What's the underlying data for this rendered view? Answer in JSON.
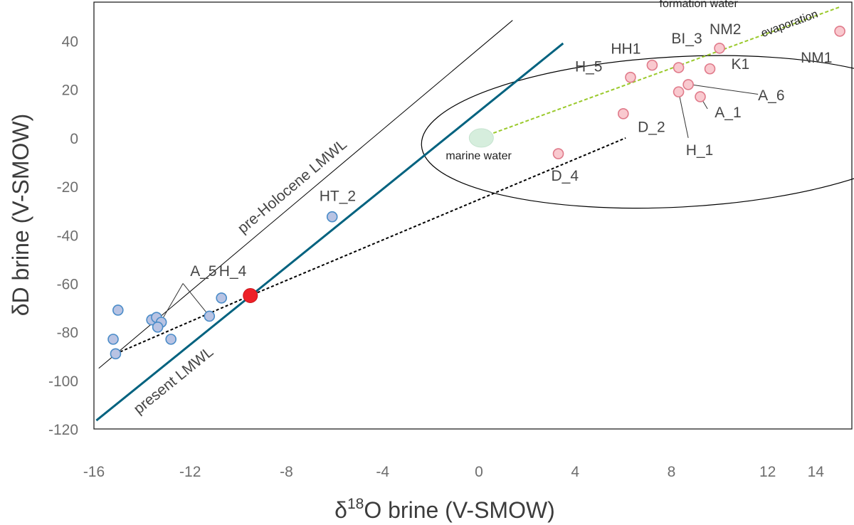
{
  "chart_data": {
    "type": "scatter",
    "title": "",
    "xlabel": {
      "prefix": "δ",
      "sup": "18",
      "rest": "O brine (V-SMOW)"
    },
    "ylabel": "δD brine (V-SMOW)",
    "xlim": [
      -16,
      15.5
    ],
    "ylim": [
      -120,
      56
    ],
    "x_ticks": [
      -16,
      -12,
      -8,
      -4,
      0,
      4,
      8,
      12,
      14
    ],
    "y_ticks": [
      40,
      20,
      0,
      -20,
      -40,
      -60,
      -80,
      -100,
      -120
    ],
    "grid": false,
    "series": [
      {
        "key": "blue",
        "color": "#b8c3e3",
        "stroke": "#4a8cc8",
        "points": [
          {
            "x": -15.0,
            "y": -71,
            "label": ""
          },
          {
            "x": -15.2,
            "y": -83,
            "label": ""
          },
          {
            "x": -15.1,
            "y": -89,
            "label": ""
          },
          {
            "x": -13.6,
            "y": -75,
            "label": ""
          },
          {
            "x": -13.4,
            "y": -74,
            "label": ""
          },
          {
            "x": -13.2,
            "y": -76,
            "label": ""
          },
          {
            "x": -13.35,
            "y": -78,
            "label": ""
          },
          {
            "x": -12.8,
            "y": -83,
            "label": ""
          },
          {
            "x": -11.2,
            "y": -73.5,
            "label": ""
          },
          {
            "x": -10.7,
            "y": -66,
            "label": ""
          },
          {
            "x": -6.1,
            "y": -32.5,
            "label": "HT_2"
          }
        ]
      },
      {
        "key": "pink",
        "color": "#f9c9cf",
        "stroke": "#e07a8a",
        "points": [
          {
            "x": 3.3,
            "y": -6.5,
            "label": "D_4"
          },
          {
            "x": 6.0,
            "y": 10,
            "label": ""
          },
          {
            "x": 6.3,
            "y": 25,
            "label": "H_5"
          },
          {
            "x": 7.2,
            "y": 30,
            "label": "HH1"
          },
          {
            "x": 8.3,
            "y": 29,
            "label": ""
          },
          {
            "x": 8.3,
            "y": 19,
            "label": ""
          },
          {
            "x": 8.7,
            "y": 22,
            "label": ""
          },
          {
            "x": 9.2,
            "y": 17,
            "label": ""
          },
          {
            "x": 9.6,
            "y": 28.5,
            "label": "K1"
          },
          {
            "x": 10.0,
            "y": 37,
            "label": "NM2"
          },
          {
            "x": 15.0,
            "y": 44,
            "label": "NM1"
          }
        ]
      }
    ],
    "special_points": {
      "red": {
        "x": -9.5,
        "y": -65,
        "color": "#ee2027"
      },
      "marine": {
        "x": 0.1,
        "y": 0,
        "color": "#d6eedd",
        "label": "marine water"
      }
    },
    "lines": {
      "pre_holocene": {
        "from": [
          -15.8,
          -95
        ],
        "to": [
          1.4,
          48.5
        ],
        "color": "#000000",
        "label": "pre-Holocene  LMWL"
      },
      "present": {
        "from": [
          -15.9,
          -116.5
        ],
        "to": [
          3.5,
          39
        ],
        "color": "#00627f",
        "label": "present LMWL"
      },
      "mixing": {
        "from": [
          -15.1,
          -89
        ],
        "via": [
          -9.5,
          -65
        ],
        "to": [
          6.1,
          0
        ],
        "color": "#000000"
      },
      "evaporation": {
        "from": [
          0.6,
          2
        ],
        "to": [
          15.0,
          54
        ],
        "color": "#9ac92b",
        "label": "evaporation"
      }
    },
    "ellipse": {
      "cx": 8.3,
      "cy": 2.5,
      "rx": 10.7,
      "ry": 31,
      "angle_deg": 3
    },
    "annotations": [
      {
        "text": "A_5",
        "x": -12.0,
        "y": -57
      },
      {
        "text": "H_4",
        "x": -10.8,
        "y": -57
      },
      {
        "text": "BI_3",
        "x": 8.0,
        "y": 39
      },
      {
        "text": "A_6",
        "x": 11.6,
        "y": 15.5
      },
      {
        "text": "A_1",
        "x": 9.8,
        "y": 8.5
      },
      {
        "text": "D_2",
        "x": 6.6,
        "y": 2.5
      },
      {
        "text": "H_1",
        "x": 8.6,
        "y": -7
      },
      {
        "text": "formation water",
        "x": 7.5,
        "y": 54
      }
    ]
  }
}
